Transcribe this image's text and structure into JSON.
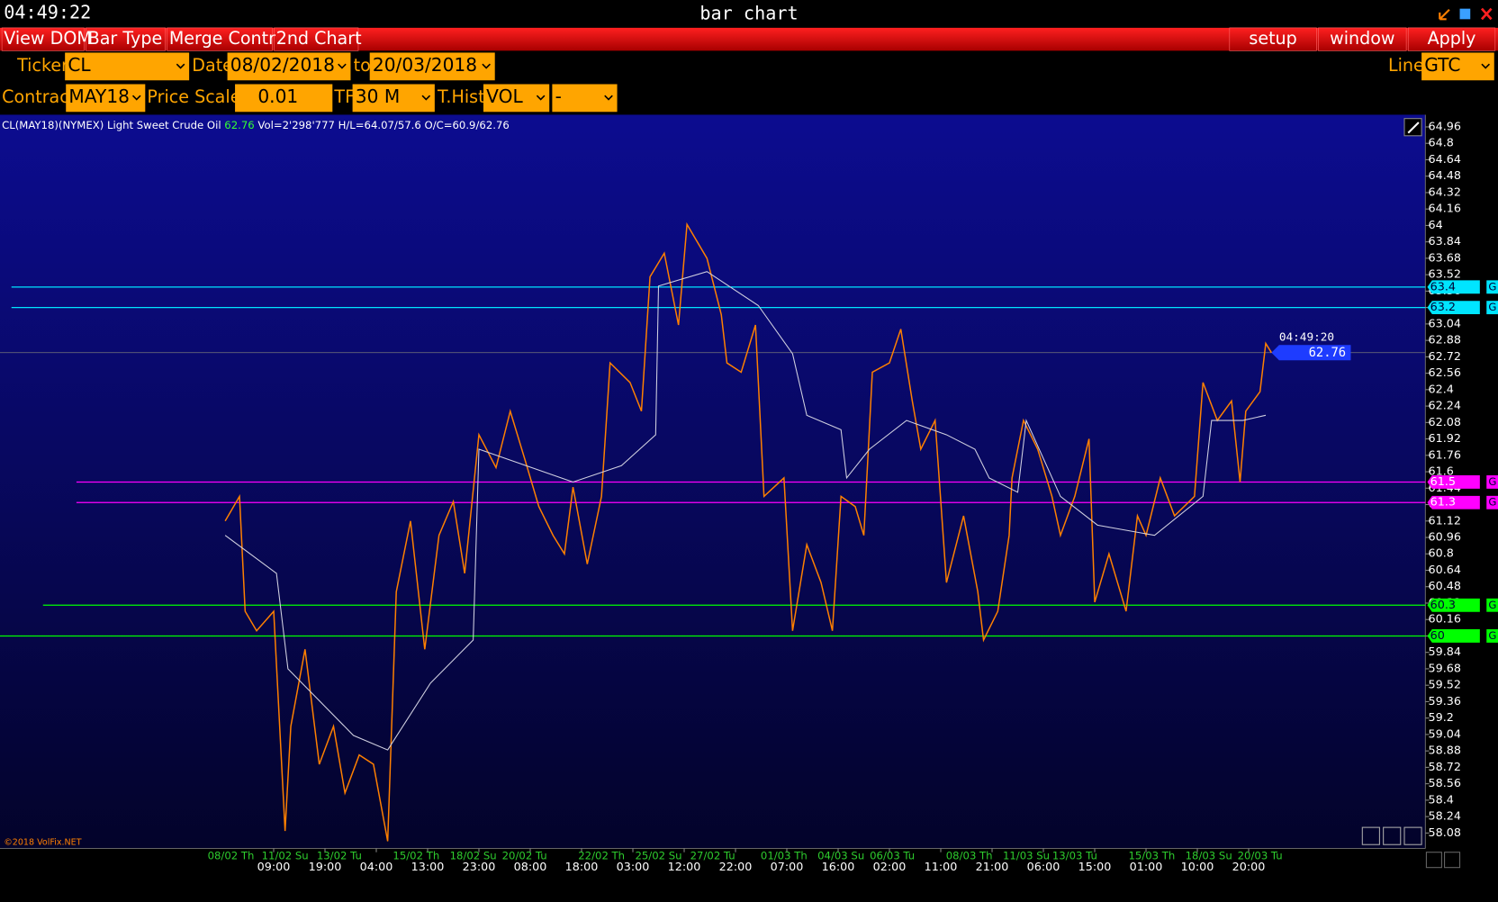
{
  "window": {
    "clock": "04:49:22",
    "title": "bar chart"
  },
  "menu": [
    "View DOM",
    "Bar Type",
    "Merge Contr",
    "2nd Chart",
    "setup",
    "window",
    "Apply"
  ],
  "controls": {
    "ticker_label": "Ticker",
    "ticker": "CL",
    "date_label": "Date",
    "date_from": "08/02/2018",
    "to_label": "to",
    "date_to": "20/03/2018",
    "line_label": "Line",
    "line": "GTC",
    "contract_label": "Contract",
    "contract": "MAY18",
    "price_scale_label": "Price Scale",
    "price_scale": "0.01",
    "tf_label": "TF",
    "tf": "30 M",
    "thist_label": "T.Hist",
    "thist": "VOL",
    "extra": "-"
  },
  "chart_data": {
    "type": "line",
    "info": "CL(MAY18)(NYMEX) Light Sweet Crude Oil",
    "info_last": "62.76",
    "info_stats": "Vol=2'298'777 H/L=64.07/57.6 O/C=60.9/62.76",
    "copyright": "©2018 VolFix.NET",
    "xlim": [
      0,
      500
    ],
    "ylim": [
      57.93,
      65.06
    ],
    "yticks": [
      58.08,
      58.24,
      58.4,
      58.56,
      58.72,
      58.88,
      59.04,
      59.2,
      59.36,
      59.52,
      59.68,
      59.84,
      60,
      60.16,
      60.32,
      60.48,
      60.64,
      60.8,
      60.96,
      61.12,
      61.28,
      61.44,
      61.6,
      61.76,
      61.92,
      62.08,
      62.24,
      62.4,
      62.56,
      62.72,
      62.88,
      63.04,
      63.2,
      63.36,
      63.52,
      63.68,
      63.84,
      64,
      64.16,
      64.32,
      64.48,
      64.64,
      64.8,
      64.96
    ],
    "xticks": [
      {
        "value": 96,
        "label": "09:00"
      },
      {
        "value": 114,
        "label": "19:00"
      },
      {
        "value": 132,
        "label": "04:00"
      },
      {
        "value": 150,
        "label": "13:00"
      },
      {
        "value": 168,
        "label": "23:00"
      },
      {
        "value": 186,
        "label": "08:00"
      },
      {
        "value": 204,
        "label": "18:00"
      },
      {
        "value": 222,
        "label": "03:00"
      },
      {
        "value": 240,
        "label": "12:00"
      },
      {
        "value": 258,
        "label": "22:00"
      },
      {
        "value": 276,
        "label": "07:00"
      },
      {
        "value": 294,
        "label": "16:00"
      },
      {
        "value": 312,
        "label": "02:00"
      },
      {
        "value": 330,
        "label": "11:00"
      },
      {
        "value": 348,
        "label": "21:00"
      },
      {
        "value": 366,
        "label": "06:00"
      },
      {
        "value": 384,
        "label": "15:00"
      },
      {
        "value": 402,
        "label": "01:00"
      },
      {
        "value": 420,
        "label": "10:00"
      },
      {
        "value": 438,
        "label": "20:00"
      }
    ],
    "date_ticks": [
      {
        "value": 81,
        "label": "08/02 Th"
      },
      {
        "value": 100,
        "label": "11/02 Su"
      },
      {
        "value": 119,
        "label": "13/02 Tu"
      },
      {
        "value": 146,
        "label": "15/02 Th"
      },
      {
        "value": 166,
        "label": "18/02 Su"
      },
      {
        "value": 184,
        "label": "20/02 Tu"
      },
      {
        "value": 211,
        "label": "22/02 Th"
      },
      {
        "value": 231,
        "label": "25/02 Su"
      },
      {
        "value": 250,
        "label": "27/02 Tu"
      },
      {
        "value": 275,
        "label": "01/03 Th"
      },
      {
        "value": 295,
        "label": "04/03 Su"
      },
      {
        "value": 313,
        "label": "06/03 Tu"
      },
      {
        "value": 340,
        "label": "08/03 Th"
      },
      {
        "value": 360,
        "label": "11/03 Su"
      },
      {
        "value": 377,
        "label": "13/03 Tu"
      },
      {
        "value": 404,
        "label": "15/03 Th"
      },
      {
        "value": 424,
        "label": "18/03 Su"
      },
      {
        "value": 442,
        "label": "20/03 Tu"
      }
    ],
    "series": [
      {
        "color": "#ff8000",
        "x": [
          79,
          84,
          86,
          90,
          96,
          100,
          102,
          107,
          112,
          117,
          121,
          126,
          131,
          136,
          139,
          144,
          149,
          154,
          159,
          163,
          168,
          174,
          179,
          184,
          189,
          194,
          198,
          201,
          206,
          211,
          214,
          221,
          225,
          228,
          233,
          238,
          241,
          248,
          253,
          255,
          260,
          265,
          268,
          275,
          278,
          283,
          288,
          292,
          295,
          300,
          303,
          306,
          312,
          316,
          320,
          323,
          328,
          332,
          338,
          343,
          345,
          350,
          354,
          355,
          359,
          364,
          369,
          372,
          377,
          382,
          384,
          389,
          395,
          399,
          402,
          407,
          412,
          419,
          422,
          427,
          432,
          435,
          437,
          442,
          444,
          446
        ],
        "values": [
          61.12,
          61.36,
          60.24,
          60.05,
          60.24,
          58.1,
          59.12,
          59.87,
          58.75,
          59.12,
          58.47,
          58.84,
          58.75,
          58.0,
          60.43,
          61.12,
          59.87,
          60.98,
          61.31,
          60.61,
          61.96,
          61.64,
          62.19,
          61.73,
          61.26,
          60.98,
          60.8,
          61.45,
          60.7,
          61.36,
          62.66,
          62.47,
          62.19,
          63.5,
          63.73,
          63.03,
          64.01,
          63.68,
          63.13,
          62.66,
          62.57,
          63.03,
          61.36,
          61.54,
          60.05,
          60.89,
          60.52,
          60.05,
          61.36,
          61.26,
          60.98,
          62.57,
          62.66,
          62.99,
          62.29,
          61.82,
          62.1,
          60.52,
          61.17,
          60.43,
          59.96,
          60.24,
          60.98,
          61.54,
          62.1,
          61.82,
          61.36,
          60.98,
          61.36,
          61.92,
          60.33,
          60.8,
          60.24,
          61.17,
          60.98,
          61.54,
          61.17,
          61.36,
          62.47,
          62.1,
          62.29,
          61.5,
          62.19,
          62.38,
          62.85,
          62.76
        ]
      },
      {
        "color": "#d0d0e0",
        "x": [
          79,
          97,
          101,
          124,
          136,
          151,
          166,
          168,
          201,
          218,
          230,
          231,
          248,
          266,
          278,
          283,
          295,
          297,
          305,
          318,
          332,
          342,
          347,
          357,
          360,
          372,
          385,
          405,
          422,
          425,
          436,
          444
        ],
        "values": [
          60.98,
          60.61,
          59.68,
          59.03,
          58.89,
          59.54,
          59.96,
          61.82,
          61.5,
          61.66,
          61.96,
          63.41,
          63.55,
          63.22,
          62.75,
          62.15,
          62.01,
          61.54,
          61.82,
          62.1,
          61.96,
          61.82,
          61.54,
          61.4,
          62.1,
          61.36,
          61.08,
          60.98,
          61.36,
          62.1,
          62.1,
          62.15
        ]
      }
    ],
    "levels": [
      {
        "value": 63.4,
        "color": "#00e5ff",
        "tag": "G"
      },
      {
        "value": 63.2,
        "color": "#00e5ff",
        "tag": "G"
      },
      {
        "value": 61.5,
        "color": "#ff00ff",
        "tag": "G"
      },
      {
        "value": 61.3,
        "color": "#ff00ff",
        "tag": "G"
      },
      {
        "value": 60.3,
        "color": "#00ff00",
        "tag": "G"
      },
      {
        "value": 60,
        "color": "#00ff00",
        "tag": "G"
      }
    ],
    "last": {
      "value": 62.76,
      "time": "04:49:20"
    }
  }
}
